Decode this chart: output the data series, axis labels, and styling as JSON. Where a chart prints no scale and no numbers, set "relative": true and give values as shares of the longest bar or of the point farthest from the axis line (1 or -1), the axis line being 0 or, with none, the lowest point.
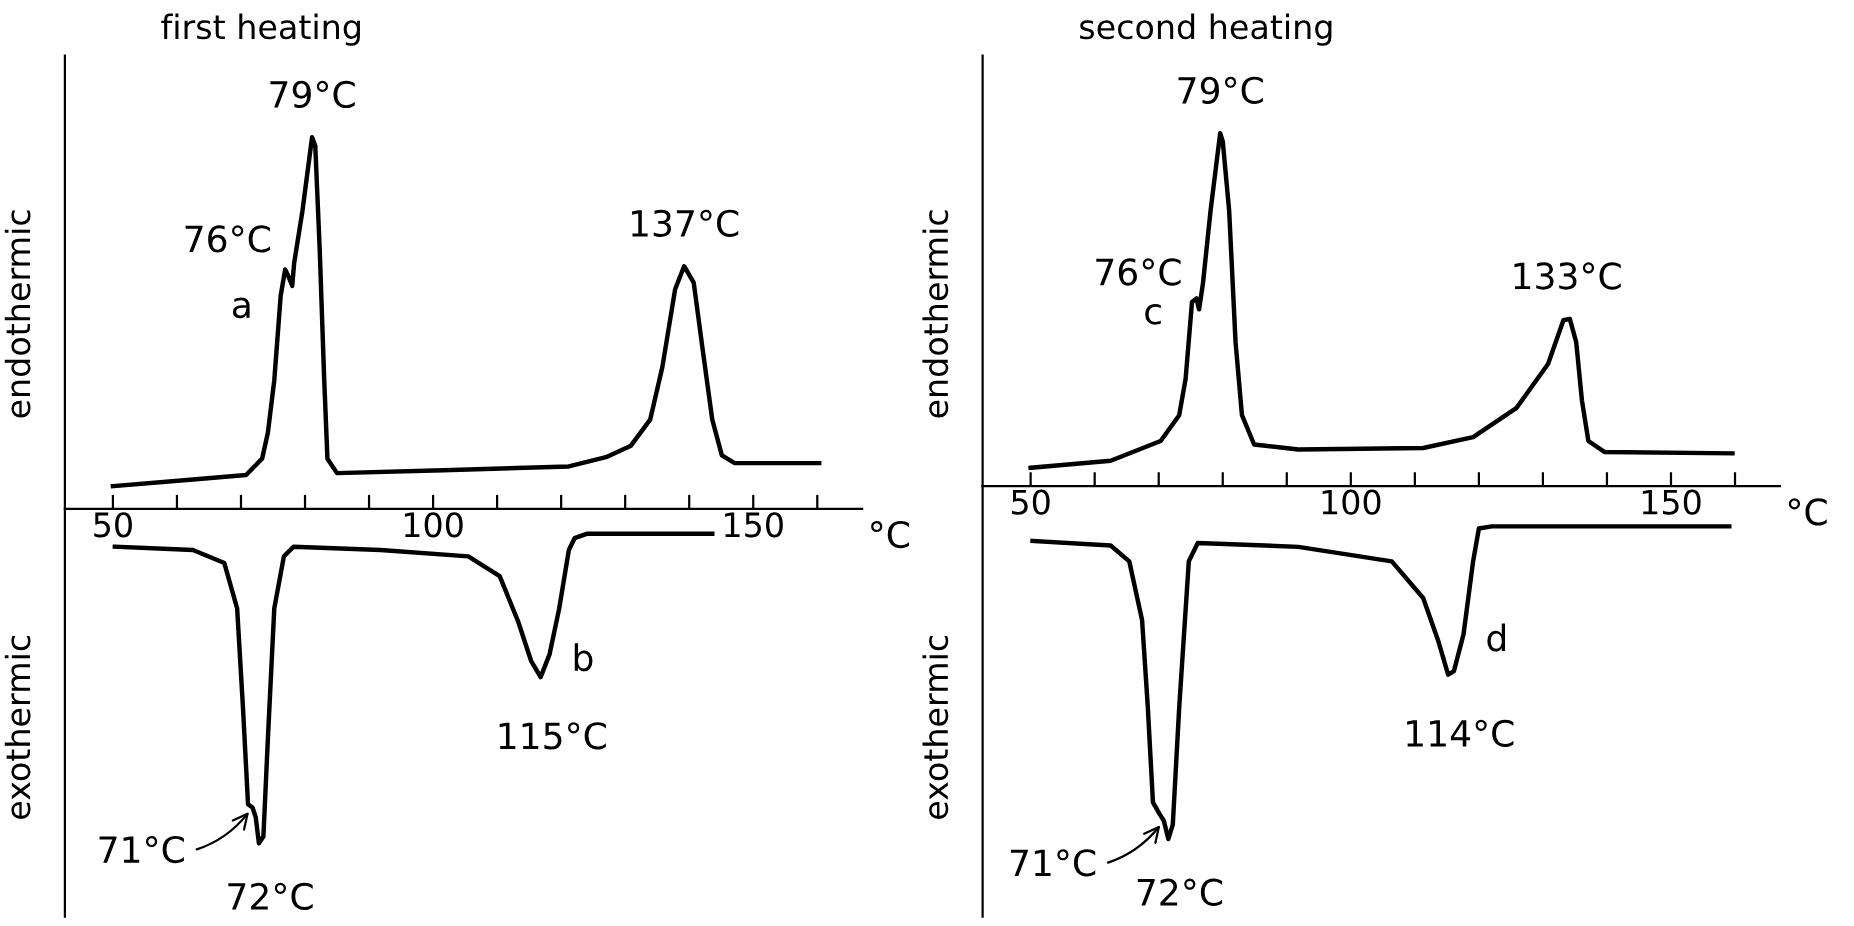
{
  "chart_data": [
    {
      "type": "line",
      "title": "first heating",
      "ylabel": "endothermic",
      "xlabel": "°C",
      "relative": true,
      "xlim": [
        42.5,
        167
      ],
      "xticks": [
        50,
        {
          "value": 60,
          "label": null
        },
        {
          "value": 70,
          "label": null
        },
        {
          "value": 80,
          "label": null
        },
        {
          "value": 90,
          "label": null
        },
        100,
        {
          "value": 110,
          "label": null
        },
        {
          "value": 120,
          "label": null
        },
        {
          "value": 130,
          "label": null
        },
        {
          "value": 140,
          "label": null
        },
        150,
        {
          "value": 160,
          "label": null
        }
      ],
      "series": [
        {
          "name": "a",
          "color": "#000000",
          "x": [
            50.0,
            62.5,
            70.8,
            73.3,
            74.2,
            75.2,
            76.2,
            76.9,
            77.4,
            78.0,
            78.3,
            79.6,
            81.1,
            81.6,
            82.3,
            83.0,
            83.5,
            85.0,
            101.6,
            121.2,
            127.0,
            130.9,
            133.9,
            135.8,
            137.8,
            139.2,
            140.7,
            142.2,
            143.6,
            145.1,
            147.1,
            160.3
          ],
          "values": [
            0.061,
            0.079,
            0.091,
            0.135,
            0.205,
            0.346,
            0.574,
            0.644,
            0.626,
            0.6,
            0.661,
            0.802,
            1,
            0.977,
            0.696,
            0.346,
            0.135,
            0.096,
            0.104,
            0.114,
            0.139,
            0.17,
            0.24,
            0.381,
            0.591,
            0.653,
            0.609,
            0.416,
            0.24,
            0.144,
            0.123,
            0.123
          ]
        },
        {
          "name": "b",
          "color": "#000000",
          "x": [
            50.3,
            62.5,
            67.4,
            69.4,
            70.3,
            71.1,
            71.8,
            72.3,
            72.8,
            73.5,
            74.2,
            75.2,
            76.7,
            78.2,
            91.8,
            105.5,
            110.4,
            113.3,
            115.3,
            116.8,
            118.2,
            119.7,
            121.2,
            122.1,
            124.1,
            143.6
          ],
          "values": [
            -0.102,
            -0.111,
            -0.146,
            -0.268,
            -0.532,
            -0.795,
            -0.804,
            -0.83,
            -0.9,
            -0.882,
            -0.619,
            -0.268,
            -0.128,
            -0.102,
            -0.111,
            -0.128,
            -0.181,
            -0.304,
            -0.409,
            -0.453,
            -0.391,
            -0.268,
            -0.111,
            -0.079,
            -0.067,
            -0.067
          ]
        }
      ],
      "annotations": [
        {
          "text": "76°C",
          "x": 77.4,
          "y": 0.626
        },
        {
          "text": "79°C",
          "x": 81.1,
          "y": 1
        },
        {
          "text": "137°C",
          "x": 139.2,
          "y": 0.653
        },
        {
          "text": "71°C",
          "x": 71.8,
          "y": -0.804
        },
        {
          "text": "72°C",
          "x": 72.8,
          "y": -0.9
        },
        {
          "text": "115°C",
          "x": 116.8,
          "y": -0.453
        },
        "exothermic"
      ]
    },
    {
      "type": "line",
      "title": "second heating",
      "ylabel": "endothermic",
      "xlabel": "°C",
      "relative": true,
      "xlim": [
        42.5,
        167
      ],
      "xticks": [
        50,
        {
          "value": 60,
          "label": null
        },
        {
          "value": 70,
          "label": null
        },
        {
          "value": 80,
          "label": null
        },
        {
          "value": 90,
          "label": null
        },
        100,
        {
          "value": 110,
          "label": null
        },
        {
          "value": 120,
          "label": null
        },
        {
          "value": 130,
          "label": null
        },
        {
          "value": 140,
          "label": null
        },
        150,
        {
          "value": 160,
          "label": null
        }
      ],
      "series": [
        {
          "name": "c",
          "color": "#000000",
          "x": [
            50.0,
            62.5,
            70.3,
            73.2,
            74.2,
            75.2,
            75.9,
            76.3,
            76.9,
            78.1,
            79.6,
            80.0,
            81.0,
            82.0,
            83.0,
            84.9,
            91.8,
            111.3,
            119.1,
            125.9,
            130.8,
            133.2,
            134.2,
            135.2,
            136.1,
            137.1,
            139.6,
            159.6
          ],
          "values": [
            0.052,
            0.072,
            0.128,
            0.201,
            0.304,
            0.522,
            0.532,
            0.501,
            0.573,
            0.781,
            1,
            0.977,
            0.781,
            0.408,
            0.201,
            0.118,
            0.104,
            0.108,
            0.139,
            0.222,
            0.346,
            0.47,
            0.474,
            0.408,
            0.242,
            0.128,
            0.097,
            0.093
          ]
        },
        {
          "name": "d",
          "color": "#000000",
          "x": [
            50.3,
            62.5,
            65.4,
            67.4,
            68.3,
            69.1,
            70.1,
            70.8,
            71.5,
            72.2,
            73.2,
            74.7,
            76.1,
            91.8,
            106.4,
            111.3,
            113.7,
            115.2,
            116.1,
            117.6,
            119.1,
            120.0,
            122.0,
            159.1
          ],
          "values": [
            -0.155,
            -0.168,
            -0.213,
            -0.379,
            -0.627,
            -0.896,
            -0.928,
            -0.948,
            -1,
            -0.959,
            -0.627,
            -0.213,
            -0.161,
            -0.172,
            -0.213,
            -0.317,
            -0.441,
            -0.534,
            -0.524,
            -0.42,
            -0.213,
            -0.12,
            -0.114,
            -0.114
          ]
        }
      ],
      "annotations": [
        {
          "text": "76°C",
          "x": 76.3,
          "y": 0.501
        },
        {
          "text": "79°C",
          "x": 79.6,
          "y": 1
        },
        {
          "text": "133°C",
          "x": 133.7,
          "y": 0.474
        },
        {
          "text": "71°C",
          "x": 70.8,
          "y": -0.948
        },
        {
          "text": "72°C",
          "x": 71.5,
          "y": -1
        },
        {
          "text": "114°C",
          "x": 115.2,
          "y": -0.534
        },
        "exothermic"
      ]
    }
  ]
}
